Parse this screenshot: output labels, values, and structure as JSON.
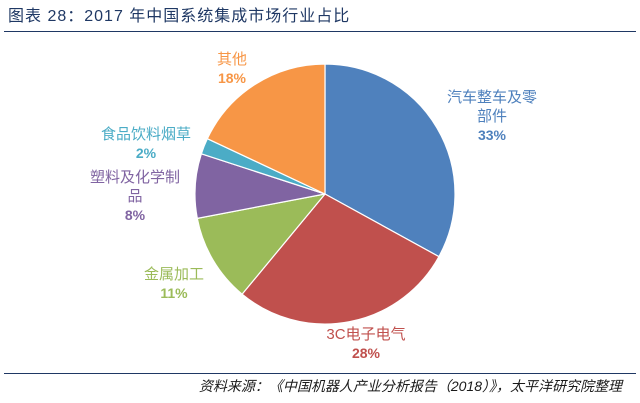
{
  "chart_data": {
    "type": "pie",
    "title": "图表 28：2017 年中国系统集成市场行业占比",
    "categories": [
      "汽车整车及零部件",
      "3C电子电气",
      "金属加工",
      "塑料及化学制品",
      "食品饮料烟草",
      "其他"
    ],
    "values": [
      33,
      28,
      11,
      8,
      2,
      18
    ],
    "data_labels": [
      "33%",
      "28%",
      "11%",
      "8%",
      "2%",
      "18%"
    ],
    "colors": [
      "#4F81BD",
      "#C0504D",
      "#9BBB59",
      "#8064A2",
      "#4BACC6",
      "#F79646"
    ],
    "legend": "none"
  },
  "footer": {
    "source": "资料来源：《中国机器人产业分析报告（2018）》，太平洋研究院整理"
  }
}
